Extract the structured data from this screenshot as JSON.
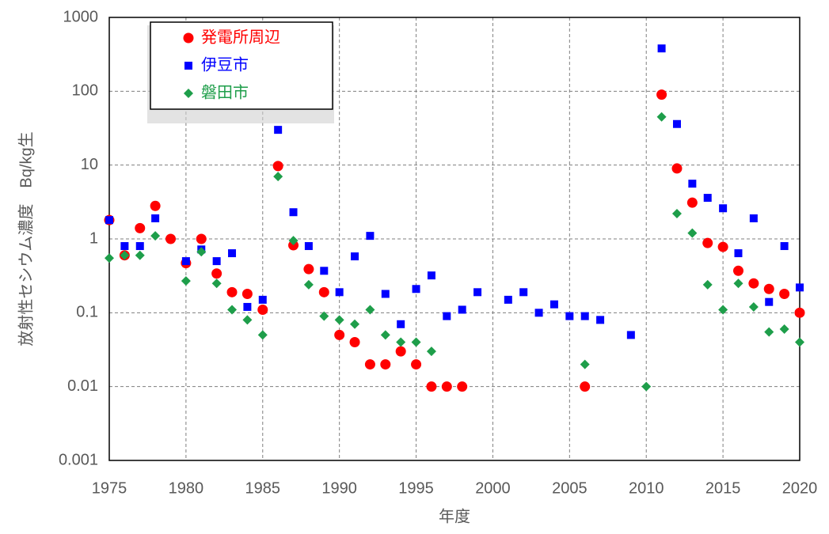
{
  "chart_data": {
    "type": "scatter",
    "x_label": "年度",
    "y_label": "放射性セシウム濃度　Bq/kg生",
    "log_y": true,
    "grid": true,
    "legend": "upper left",
    "xlim": [
      1975,
      2020
    ],
    "xticks": [
      1975,
      1980,
      1985,
      1990,
      1995,
      2000,
      2005,
      2010,
      2015,
      2020
    ],
    "ylim": [
      0.001,
      1000
    ],
    "yticks": [
      1000,
      100,
      10,
      1,
      0.1,
      0.01,
      0.001
    ],
    "series": [
      {
        "name": "発電所周辺",
        "color": "#ff0000",
        "marker": "circle",
        "x": [
          1975,
          1976,
          1977,
          1978,
          1979,
          1980,
          1981,
          1982,
          1983,
          1984,
          1985,
          1986,
          1987,
          1988,
          1989,
          1990,
          1991,
          1992,
          1993,
          1994,
          1995,
          1996,
          1997,
          1998,
          2006,
          2011,
          2012,
          2013,
          2014,
          2015,
          2016,
          2017,
          2018,
          2019,
          2020
        ],
        "values": [
          1.8,
          0.6,
          1.4,
          2.8,
          1.0,
          0.47,
          1.0,
          0.34,
          0.19,
          0.18,
          0.11,
          9.7,
          0.82,
          0.39,
          0.19,
          0.05,
          0.04,
          0.02,
          0.02,
          0.03,
          0.02,
          0.01,
          0.01,
          0.01,
          0.01,
          90,
          9,
          3.1,
          0.88,
          0.78,
          0.37,
          0.25,
          0.21,
          0.18,
          0.1
        ]
      },
      {
        "name": "伊豆市",
        "color": "#0000ff",
        "marker": "square",
        "x": [
          1975,
          1976,
          1977,
          1978,
          1980,
          1981,
          1982,
          1983,
          1984,
          1985,
          1986,
          1987,
          1988,
          1989,
          1990,
          1991,
          1992,
          1993,
          1994,
          1995,
          1996,
          1997,
          1998,
          1999,
          2001,
          2002,
          2003,
          2004,
          2005,
          2006,
          2007,
          2009,
          2011,
          2012,
          2013,
          2014,
          2015,
          2016,
          2017,
          2018,
          2019,
          2020
        ],
        "values": [
          1.8,
          0.8,
          0.8,
          1.9,
          0.5,
          0.72,
          0.5,
          0.64,
          0.12,
          0.15,
          30,
          2.3,
          0.8,
          0.37,
          0.19,
          0.58,
          1.1,
          0.18,
          0.07,
          0.21,
          0.32,
          0.09,
          0.11,
          0.19,
          0.15,
          0.19,
          0.1,
          0.13,
          0.09,
          0.09,
          0.08,
          0.05,
          380,
          36,
          5.6,
          3.6,
          2.6,
          0.64,
          1.9,
          0.14,
          0.8,
          0.22
        ]
      },
      {
        "name": "磐田市",
        "color": "#1e9e4a",
        "marker": "diamond",
        "x": [
          1975,
          1976,
          1977,
          1978,
          1980,
          1981,
          1982,
          1983,
          1984,
          1985,
          1986,
          1987,
          1988,
          1989,
          1990,
          1991,
          1992,
          1993,
          1994,
          1995,
          1996,
          2006,
          2010,
          2011,
          2012,
          2013,
          2014,
          2015,
          2016,
          2017,
          2018,
          2019,
          2020
        ],
        "values": [
          0.55,
          0.6,
          0.6,
          1.1,
          0.27,
          0.67,
          0.25,
          0.11,
          0.08,
          0.05,
          7,
          0.95,
          0.24,
          0.09,
          0.08,
          0.07,
          0.11,
          0.05,
          0.04,
          0.04,
          0.03,
          0.02,
          0.01,
          45,
          2.2,
          1.2,
          0.24,
          0.11,
          0.25,
          0.12,
          0.055,
          0.06,
          0.04
        ]
      }
    ]
  }
}
